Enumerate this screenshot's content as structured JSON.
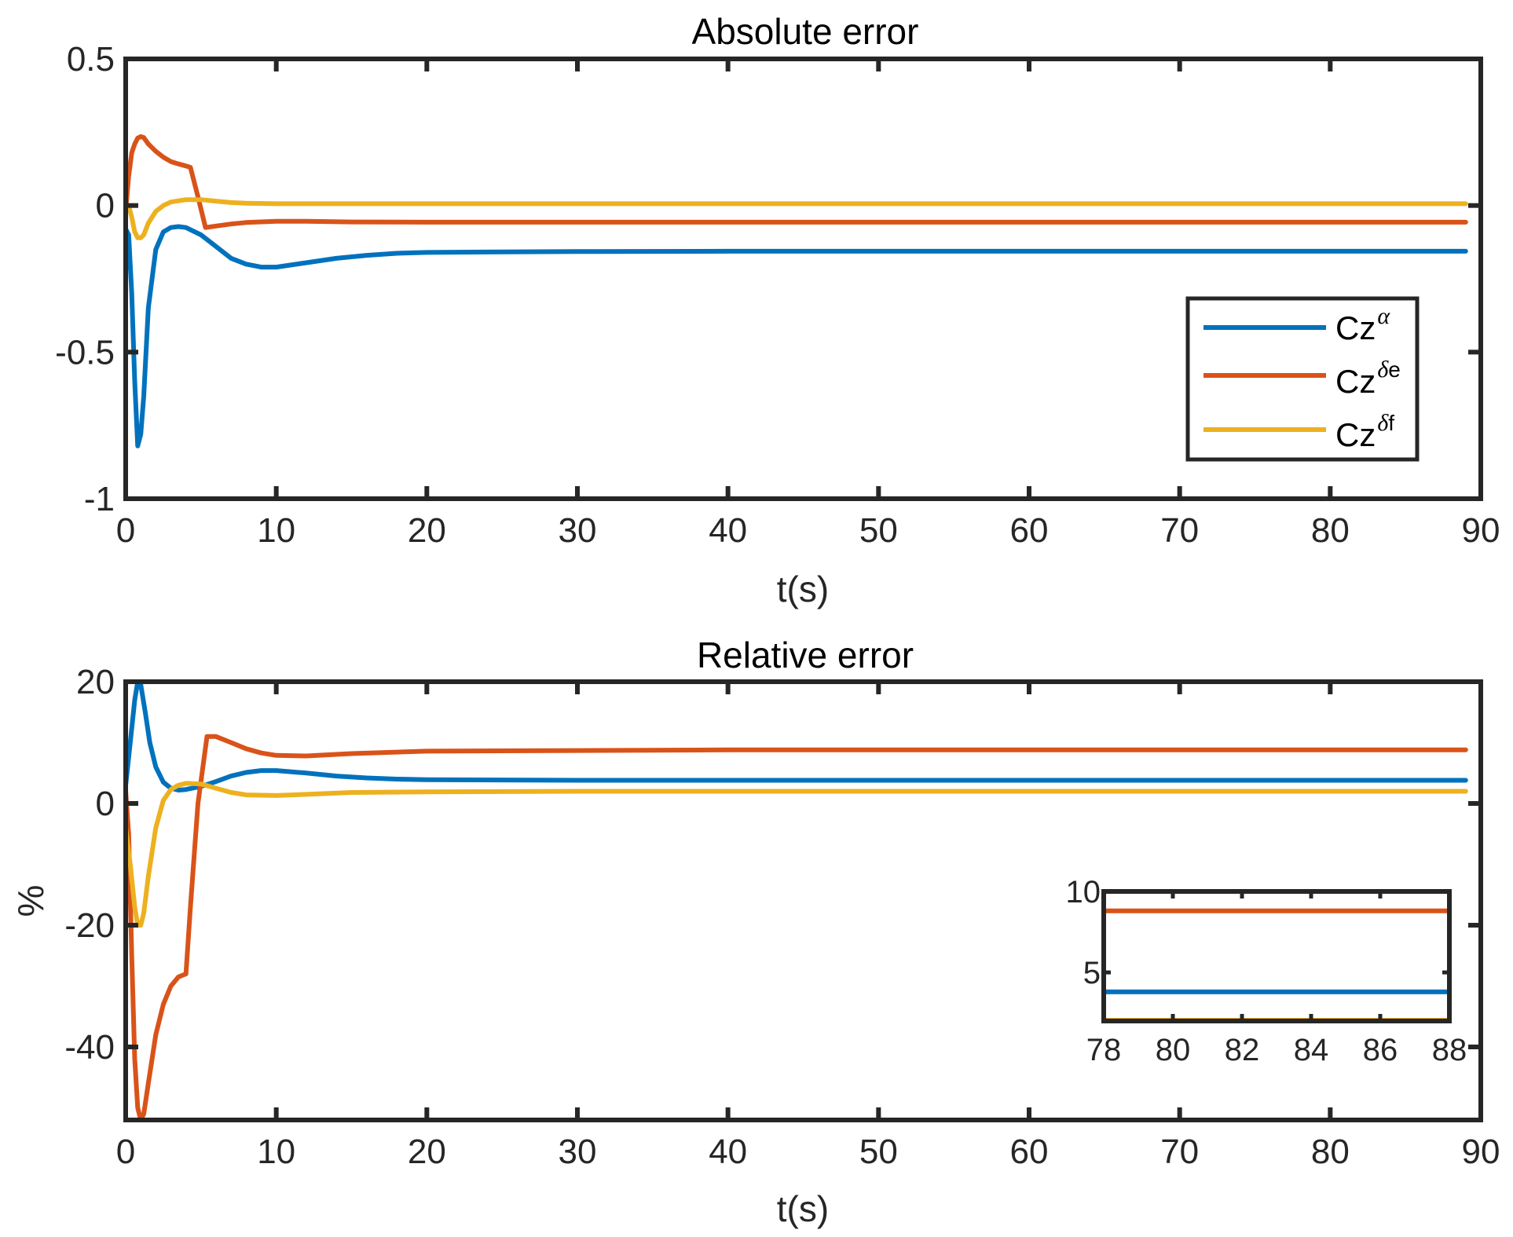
{
  "chart_data": [
    {
      "type": "line",
      "title": "Absolute error",
      "xlabel": "t(s)",
      "ylabel": "",
      "xlim": [
        0,
        90
      ],
      "ylim": [
        -1,
        0.5
      ],
      "xticks": [
        0,
        10,
        20,
        30,
        40,
        50,
        60,
        70,
        80,
        90
      ],
      "xtick_labels": [
        "0",
        "10",
        "20",
        "30",
        "40",
        "50",
        "60",
        "70",
        "80",
        "90"
      ],
      "yticks": [
        -1,
        -0.5,
        0,
        0.5
      ],
      "ytick_labels": [
        "-1",
        "-0.5",
        "0",
        "0.5"
      ],
      "legend": {
        "position": "right",
        "entries": [
          {
            "base": "Cz",
            "sup": "α",
            "color": "#0072BD"
          },
          {
            "base": "Cz",
            "sup_symbol": "δ",
            "sup_text": "e",
            "color": "#D95319"
          },
          {
            "base": "Cz",
            "sup_symbol": "δ",
            "sup_text": "f",
            "color": "#EDB120"
          }
        ]
      },
      "series": [
        {
          "name": "Czα",
          "color": "#0072BD",
          "x": [
            0,
            0.2,
            0.4,
            0.6,
            0.8,
            1.0,
            1.2,
            1.5,
            2,
            2.5,
            3,
            3.5,
            4,
            5,
            6,
            7,
            8,
            9,
            10,
            12,
            14,
            16,
            18,
            20,
            25,
            30,
            40,
            50,
            60,
            70,
            80,
            89
          ],
          "y": [
            -0.08,
            -0.1,
            -0.3,
            -0.6,
            -0.82,
            -0.78,
            -0.65,
            -0.35,
            -0.15,
            -0.09,
            -0.075,
            -0.072,
            -0.075,
            -0.1,
            -0.14,
            -0.18,
            -0.2,
            -0.21,
            -0.21,
            -0.195,
            -0.18,
            -0.17,
            -0.163,
            -0.16,
            -0.158,
            -0.157,
            -0.156,
            -0.156,
            -0.156,
            -0.156,
            -0.156,
            -0.156
          ]
        },
        {
          "name": "Czδe",
          "color": "#D95319",
          "x": [
            0,
            0.2,
            0.4,
            0.6,
            0.8,
            1.0,
            1.2,
            1.5,
            2,
            2.5,
            3,
            3.5,
            4,
            4.3,
            4.8,
            5.3,
            6,
            7,
            8,
            10,
            12,
            15,
            20,
            30,
            40,
            60,
            80,
            89
          ],
          "y": [
            -0.02,
            0.1,
            0.18,
            0.21,
            0.23,
            0.235,
            0.232,
            0.21,
            0.185,
            0.165,
            0.15,
            0.142,
            0.135,
            0.13,
            0.03,
            -0.075,
            -0.07,
            -0.063,
            -0.058,
            -0.054,
            -0.054,
            -0.056,
            -0.057,
            -0.057,
            -0.057,
            -0.057,
            -0.057,
            -0.057
          ]
        },
        {
          "name": "Czδf",
          "color": "#EDB120",
          "x": [
            0,
            0.2,
            0.4,
            0.6,
            0.8,
            1.0,
            1.2,
            1.5,
            2,
            2.5,
            3,
            4,
            5,
            6,
            7,
            8,
            10,
            15,
            20,
            40,
            60,
            80,
            89
          ],
          "y": [
            0.0,
            0.0,
            -0.04,
            -0.09,
            -0.11,
            -0.11,
            -0.1,
            -0.06,
            -0.02,
            0.0,
            0.012,
            0.02,
            0.02,
            0.015,
            0.01,
            0.008,
            0.006,
            0.006,
            0.006,
            0.006,
            0.006,
            0.006,
            0.006
          ]
        }
      ]
    },
    {
      "type": "line",
      "title": "Relative error",
      "xlabel": "t(s)",
      "ylabel": "%",
      "xlim": [
        0,
        90
      ],
      "ylim": [
        -52,
        20
      ],
      "xticks": [
        0,
        10,
        20,
        30,
        40,
        50,
        60,
        70,
        80,
        90
      ],
      "xtick_labels": [
        "0",
        "10",
        "20",
        "30",
        "40",
        "50",
        "60",
        "70",
        "80",
        "90"
      ],
      "yticks": [
        -40,
        -20,
        0,
        20
      ],
      "ytick_labels": [
        "-40",
        "-20",
        "0",
        "20"
      ],
      "series": [
        {
          "name": "Czα",
          "color": "#0072BD",
          "x": [
            0,
            0.3,
            0.6,
            0.8,
            1.0,
            1.3,
            1.6,
            2,
            2.5,
            3,
            3.5,
            4,
            5,
            6,
            7,
            8,
            9,
            10,
            12,
            14,
            16,
            18,
            20,
            30,
            40,
            60,
            80,
            89
          ],
          "y": [
            3,
            10,
            17,
            20,
            19.5,
            15,
            10,
            6,
            3.5,
            2.5,
            2.2,
            2.3,
            2.8,
            3.6,
            4.5,
            5.1,
            5.4,
            5.4,
            5.0,
            4.5,
            4.2,
            4.0,
            3.9,
            3.8,
            3.8,
            3.8,
            3.8,
            3.8
          ]
        },
        {
          "name": "Czδe",
          "color": "#D95319",
          "x": [
            0,
            0.2,
            0.4,
            0.6,
            0.8,
            1.0,
            1.2,
            1.5,
            2,
            2.5,
            3,
            3.5,
            4.0,
            4.3,
            4.8,
            5.4,
            6,
            7,
            8,
            9,
            10,
            12,
            15,
            20,
            30,
            40,
            60,
            80,
            89
          ],
          "y": [
            2,
            -5,
            -25,
            -42,
            -50,
            -52,
            -51,
            -46,
            -38,
            -33,
            -30,
            -28.5,
            -28,
            -17,
            0,
            11,
            11,
            10,
            9,
            8.3,
            7.9,
            7.8,
            8.2,
            8.6,
            8.7,
            8.8,
            8.8,
            8.8,
            8.8
          ]
        },
        {
          "name": "Czδf",
          "color": "#EDB120",
          "x": [
            0,
            0.3,
            0.6,
            0.8,
            1.0,
            1.2,
            1.5,
            2,
            2.5,
            3,
            3.5,
            4,
            5,
            6,
            7,
            8,
            10,
            12,
            15,
            20,
            30,
            40,
            60,
            80,
            89
          ],
          "y": [
            -4,
            -10,
            -17,
            -20,
            -20,
            -18,
            -12,
            -4,
            0.5,
            2.3,
            3.0,
            3.3,
            3.2,
            2.5,
            1.8,
            1.4,
            1.3,
            1.5,
            1.8,
            1.9,
            2.0,
            2.0,
            2.0,
            2.0,
            2.0
          ]
        }
      ],
      "inset": {
        "xlim": [
          78,
          88
        ],
        "ylim": [
          2,
          10
        ],
        "xticks": [
          78,
          80,
          82,
          84,
          86,
          88
        ],
        "xtick_labels": [
          "78",
          "80",
          "82",
          "84",
          "86",
          "88"
        ],
        "yticks": [
          5,
          10
        ],
        "ytick_labels": [
          "5",
          "10"
        ],
        "series": [
          {
            "name": "Czδe",
            "color": "#D95319",
            "x": [
              78,
              88
            ],
            "y": [
              8.8,
              8.8
            ]
          },
          {
            "name": "Czα",
            "color": "#0072BD",
            "x": [
              78,
              88
            ],
            "y": [
              3.8,
              3.8
            ]
          },
          {
            "name": "Czδf",
            "color": "#EDB120",
            "x": [
              78,
              88
            ],
            "y": [
              2.05,
              2.05
            ]
          }
        ]
      }
    }
  ]
}
